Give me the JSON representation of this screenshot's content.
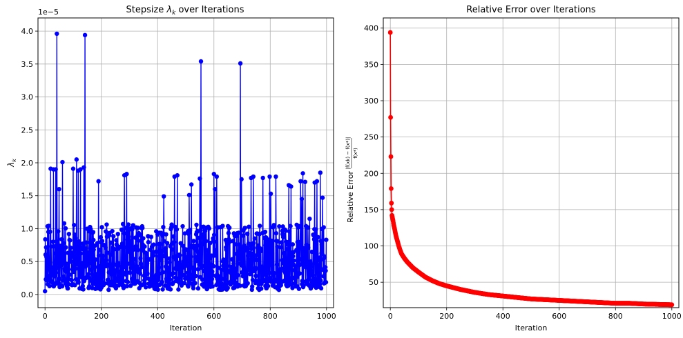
{
  "chart_data": [
    {
      "type": "line",
      "title": "Stepsize λk over Iterations",
      "title_prefix": "Stepsize ",
      "title_symbol": "λ",
      "title_subscript": "k",
      "title_suffix": " over Iterations",
      "xlabel": "Iteration",
      "ylabel_symbol": "λ",
      "ylabel_subscript": "k",
      "scale_label": "1e−5",
      "xlim": [
        -25,
        1025
      ],
      "ylim": [
        -0.2,
        4.2
      ],
      "xticks": [
        0,
        200,
        400,
        600,
        800,
        1000
      ],
      "yticks": [
        0.0,
        0.5,
        1.0,
        1.5,
        2.0,
        2.5,
        3.0,
        3.5,
        4.0
      ],
      "ytick_labels": [
        "0.0",
        "0.5",
        "1.0",
        "1.5",
        "2.0",
        "2.5",
        "3.0",
        "3.5",
        "4.0"
      ],
      "grid": true,
      "marker": "circle",
      "color": "#0000ff",
      "x_range": [
        0,
        999
      ],
      "notable_points": [
        {
          "x": 0,
          "y": 0.05
        },
        {
          "x": 5,
          "y": 0.57
        },
        {
          "x": 12,
          "y": 0.95
        },
        {
          "x": 20,
          "y": 1.91
        },
        {
          "x": 30,
          "y": 1.9
        },
        {
          "x": 38,
          "y": 1.9
        },
        {
          "x": 42,
          "y": 3.96
        },
        {
          "x": 50,
          "y": 1.6
        },
        {
          "x": 62,
          "y": 2.01
        },
        {
          "x": 68,
          "y": 1.08
        },
        {
          "x": 100,
          "y": 1.91
        },
        {
          "x": 112,
          "y": 2.05
        },
        {
          "x": 118,
          "y": 1.88
        },
        {
          "x": 126,
          "y": 1.9
        },
        {
          "x": 138,
          "y": 1.93
        },
        {
          "x": 142,
          "y": 3.94
        },
        {
          "x": 190,
          "y": 1.72
        },
        {
          "x": 282,
          "y": 1.81
        },
        {
          "x": 290,
          "y": 1.83
        },
        {
          "x": 422,
          "y": 1.49
        },
        {
          "x": 460,
          "y": 1.79
        },
        {
          "x": 470,
          "y": 1.81
        },
        {
          "x": 512,
          "y": 1.51
        },
        {
          "x": 520,
          "y": 1.67
        },
        {
          "x": 550,
          "y": 1.76
        },
        {
          "x": 554,
          "y": 3.54
        },
        {
          "x": 600,
          "y": 1.83
        },
        {
          "x": 604,
          "y": 1.6
        },
        {
          "x": 610,
          "y": 1.79
        },
        {
          "x": 694,
          "y": 3.51
        },
        {
          "x": 698,
          "y": 1.75
        },
        {
          "x": 732,
          "y": 1.77
        },
        {
          "x": 740,
          "y": 1.79
        },
        {
          "x": 774,
          "y": 1.77
        },
        {
          "x": 798,
          "y": 1.79
        },
        {
          "x": 802,
          "y": 1.53
        },
        {
          "x": 820,
          "y": 1.79
        },
        {
          "x": 866,
          "y": 1.66
        },
        {
          "x": 874,
          "y": 1.64
        },
        {
          "x": 908,
          "y": 1.72
        },
        {
          "x": 912,
          "y": 1.45
        },
        {
          "x": 916,
          "y": 1.84
        },
        {
          "x": 924,
          "y": 1.71
        },
        {
          "x": 940,
          "y": 1.15
        },
        {
          "x": 958,
          "y": 1.7
        },
        {
          "x": 966,
          "y": 1.72
        },
        {
          "x": 978,
          "y": 1.85
        },
        {
          "x": 986,
          "y": 1.47
        },
        {
          "x": 990,
          "y": 1.02
        },
        {
          "x": 999,
          "y": 0.83
        }
      ],
      "baseline_band": [
        0.05,
        1.1
      ]
    },
    {
      "type": "line",
      "title": "Relative Error over Iterations",
      "xlabel": "Iteration",
      "ylabel_text": "Relative Error",
      "ylabel_formula_num": "|f(xk) − f(x*)|",
      "ylabel_formula_den": "f(x*)",
      "xlim": [
        -25,
        1025
      ],
      "ylim": [
        15,
        414
      ],
      "xticks": [
        0,
        200,
        400,
        600,
        800,
        1000
      ],
      "yticks": [
        50,
        100,
        150,
        200,
        250,
        300,
        350,
        400
      ],
      "grid": true,
      "marker": "circle",
      "color": "#ff0000",
      "series": [
        {
          "x": [
            0,
            1,
            2,
            3,
            4,
            5,
            6,
            8,
            10,
            12,
            15,
            18,
            20,
            25,
            30,
            35,
            40,
            45,
            50,
            60,
            70,
            80,
            90,
            100,
            125,
            150,
            175,
            200,
            250,
            300,
            350,
            400,
            450,
            500,
            550,
            600,
            650,
            700,
            750,
            800,
            850,
            900,
            950,
            1000
          ],
          "y": [
            394,
            277,
            223,
            179,
            159,
            150,
            142,
            138,
            134,
            129,
            124,
            118,
            114,
            107,
            100,
            94,
            89,
            86,
            83,
            78,
            74,
            70,
            67,
            64,
            57,
            52,
            48,
            45,
            40,
            36,
            33,
            31,
            29,
            27,
            26,
            25,
            24,
            23,
            22,
            21,
            21,
            20,
            19.5,
            19
          ]
        }
      ]
    }
  ]
}
